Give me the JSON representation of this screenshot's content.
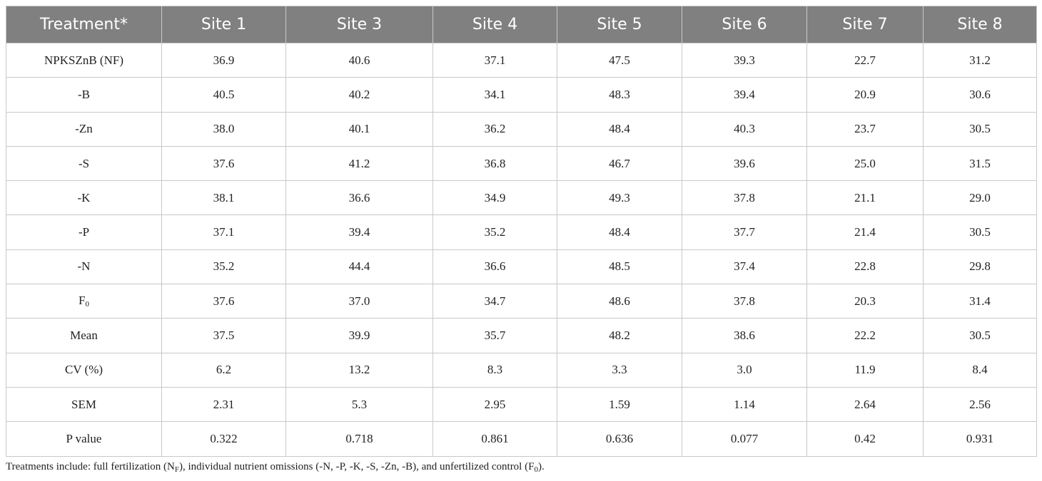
{
  "table": {
    "header": [
      "Treatment*",
      "Site 1",
      "Site 3",
      "Site 4",
      "Site 5",
      "Site 6",
      "Site 7",
      "Site 8"
    ],
    "rows": [
      [
        "NPKSZnB (NF)",
        "36.9",
        "40.6",
        "37.1",
        "47.5",
        "39.3",
        "22.7",
        "31.2"
      ],
      [
        "-B",
        "40.5",
        "40.2",
        "34.1",
        "48.3",
        "39.4",
        "20.9",
        "30.6"
      ],
      [
        "-Zn",
        "38.0",
        "40.1",
        "36.2",
        "48.4",
        "40.3",
        "23.7",
        "30.5"
      ],
      [
        "-S",
        "37.6",
        "41.2",
        "36.8",
        "46.7",
        "39.6",
        "25.0",
        "31.5"
      ],
      [
        "-K",
        "38.1",
        "36.6",
        "34.9",
        "49.3",
        "37.8",
        "21.1",
        "29.0"
      ],
      [
        "-P",
        "37.1",
        "39.4",
        "35.2",
        "48.4",
        "37.7",
        "21.4",
        "30.5"
      ],
      [
        "-N",
        "35.2",
        "44.4",
        "36.6",
        "48.5",
        "37.4",
        "22.8",
        "29.8"
      ],
      [
        {
          "text": "F",
          "sub": "0"
        },
        "37.6",
        "37.0",
        "34.7",
        "48.6",
        "37.8",
        "20.3",
        "31.4"
      ],
      [
        "Mean",
        "37.5",
        "39.9",
        "35.7",
        "48.2",
        "38.6",
        "22.2",
        "30.5"
      ],
      [
        "CV (%)",
        "6.2",
        "13.2",
        "8.3",
        "3.3",
        "3.0",
        "11.9",
        "8.4"
      ],
      [
        "SEM",
        "2.31",
        "5.3",
        "2.95",
        "1.59",
        "1.14",
        "2.64",
        "2.56"
      ],
      [
        "P value",
        "0.322",
        "0.718",
        "0.861",
        "0.636",
        "0.077",
        "0.42",
        "0.931"
      ]
    ]
  },
  "footnote": [
    {
      "text": "Treatments include: full fertilization (N"
    },
    {
      "sub": "F"
    },
    {
      "text": "), individual nutrient omissions (-N, -P, -K, -S, -Zn, -B), and unfertilized control (F"
    },
    {
      "sub": "0"
    },
    {
      "text": ")."
    }
  ]
}
